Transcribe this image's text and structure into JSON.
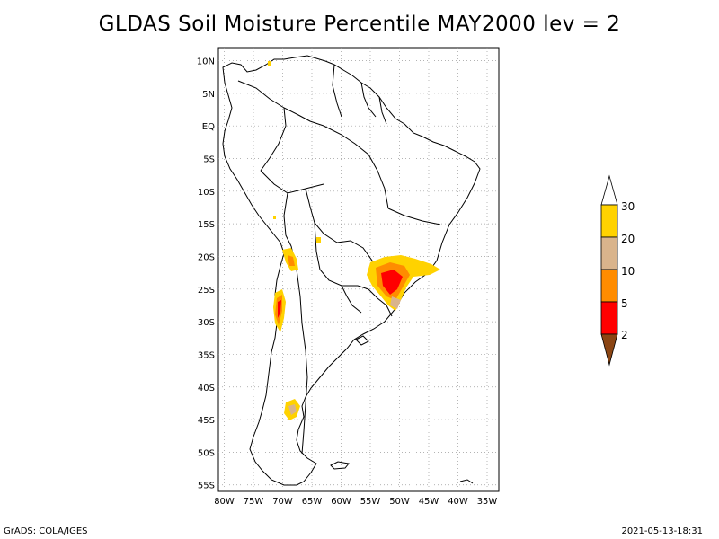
{
  "title": "GLDAS Soil Moisture Percentile MAY2000 lev = 2",
  "footer": {
    "left": "GrADS: COLA/IGES",
    "right": "2021-05-13-18:31"
  },
  "lat_labels": [
    "10N",
    "5N",
    "EQ",
    "5S",
    "10S",
    "15S",
    "20S",
    "25S",
    "30S",
    "35S",
    "40S",
    "45S",
    "50S",
    "55S"
  ],
  "lon_labels": [
    "80W",
    "75W",
    "70W",
    "65W",
    "60W",
    "55W",
    "50W",
    "45W",
    "40W",
    "35W"
  ],
  "colorbar": {
    "labels": [
      "30",
      "20",
      "10",
      "5",
      "2"
    ],
    "colors": {
      "gt30": "#ffffff",
      "c20_30": "#ffd200",
      "c10_20": "#d9b48c",
      "c5_10": "#ff8c00",
      "c2_5": "#ff0000",
      "lt2": "#8b4513"
    }
  }
}
